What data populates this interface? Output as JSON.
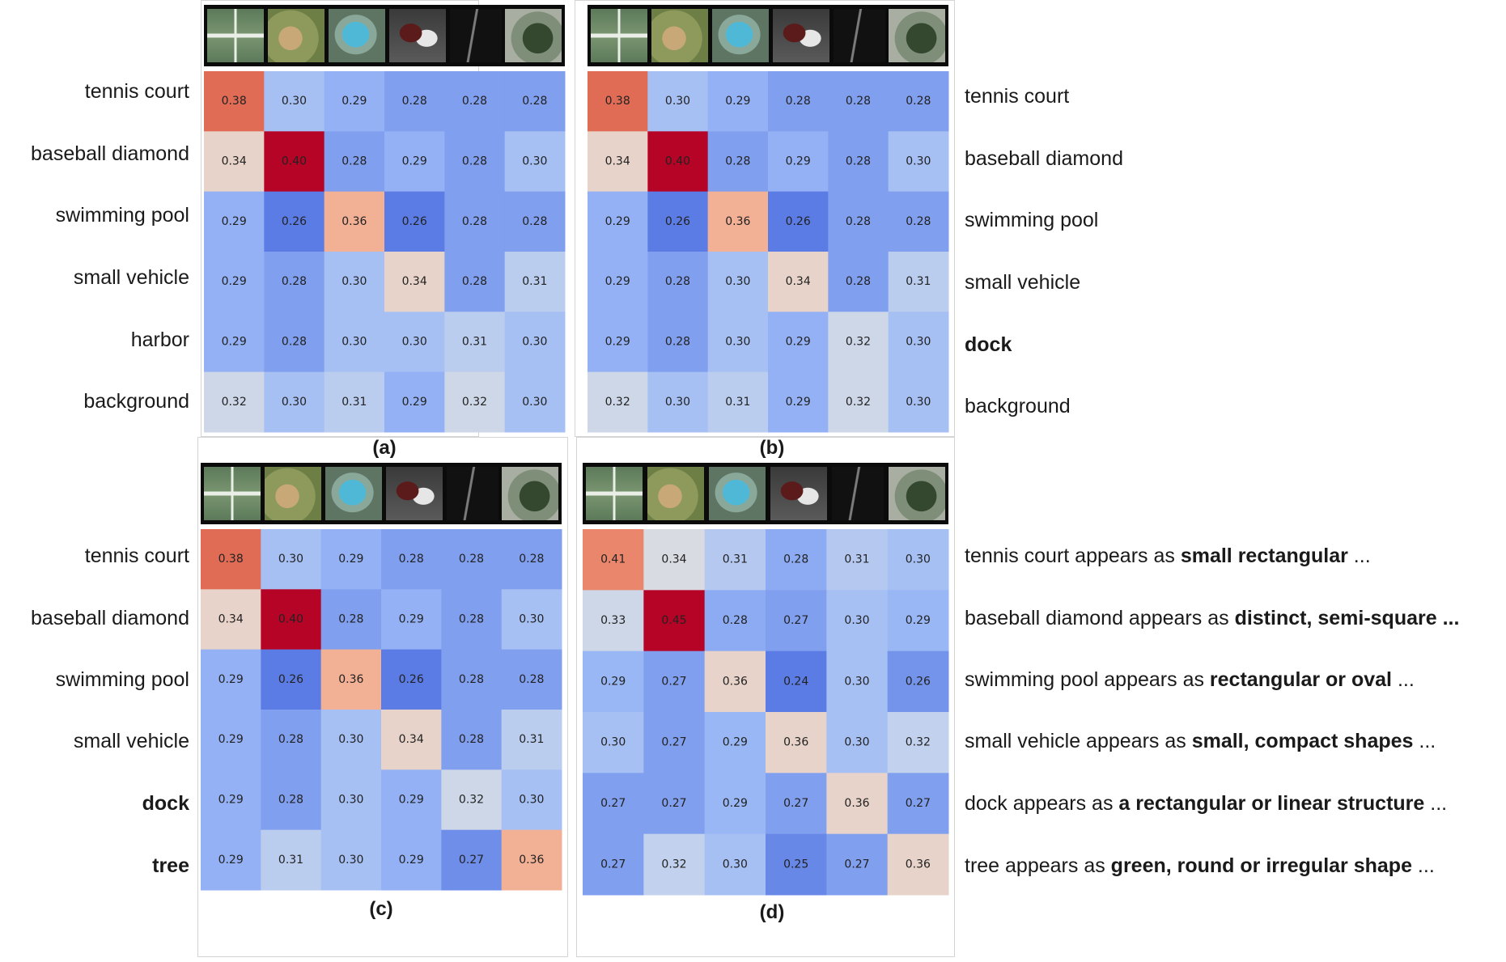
{
  "chart_data": [
    {
      "type": "heatmap",
      "caption": "(a)",
      "row_labels": [
        {
          "text": "tennis court",
          "bold": false
        },
        {
          "text": "baseball diamond",
          "bold": false
        },
        {
          "text": "swimming pool",
          "bold": false
        },
        {
          "text": "small vehicle",
          "bold": false
        },
        {
          "text": "harbor",
          "bold": false
        },
        {
          "text": "background",
          "bold": false
        }
      ],
      "image_columns": [
        "tennis-court",
        "baseball-diamond",
        "swimming-pool",
        "small-vehicle",
        "dock",
        "tree"
      ],
      "values": [
        [
          0.38,
          0.3,
          0.29,
          0.28,
          0.28,
          0.28
        ],
        [
          0.34,
          0.4,
          0.28,
          0.29,
          0.28,
          0.3
        ],
        [
          0.29,
          0.26,
          0.36,
          0.26,
          0.28,
          0.28
        ],
        [
          0.29,
          0.28,
          0.3,
          0.34,
          0.28,
          0.31
        ],
        [
          0.29,
          0.28,
          0.3,
          0.3,
          0.31,
          0.3
        ],
        [
          0.32,
          0.3,
          0.31,
          0.29,
          0.32,
          0.3
        ]
      ],
      "colormap": "coolwarm"
    },
    {
      "type": "heatmap",
      "caption": "(b)",
      "row_labels": [
        {
          "text": "tennis court",
          "bold": false
        },
        {
          "text": "baseball diamond",
          "bold": false
        },
        {
          "text": "swimming pool",
          "bold": false
        },
        {
          "text": "small vehicle",
          "bold": false
        },
        {
          "text": "dock",
          "bold": true
        },
        {
          "text": "background",
          "bold": false
        }
      ],
      "image_columns": [
        "tennis-court",
        "baseball-diamond",
        "swimming-pool",
        "small-vehicle",
        "dock",
        "tree"
      ],
      "values": [
        [
          0.38,
          0.3,
          0.29,
          0.28,
          0.28,
          0.28
        ],
        [
          0.34,
          0.4,
          0.28,
          0.29,
          0.28,
          0.3
        ],
        [
          0.29,
          0.26,
          0.36,
          0.26,
          0.28,
          0.28
        ],
        [
          0.29,
          0.28,
          0.3,
          0.34,
          0.28,
          0.31
        ],
        [
          0.29,
          0.28,
          0.3,
          0.29,
          0.32,
          0.3
        ],
        [
          0.32,
          0.3,
          0.31,
          0.29,
          0.32,
          0.3
        ]
      ],
      "colormap": "coolwarm"
    },
    {
      "type": "heatmap",
      "caption": "(c)",
      "row_labels": [
        {
          "text": "tennis court",
          "bold": false
        },
        {
          "text": "baseball diamond",
          "bold": false
        },
        {
          "text": "swimming pool",
          "bold": false
        },
        {
          "text": "small vehicle",
          "bold": false
        },
        {
          "text": "dock",
          "bold": true
        },
        {
          "text": "tree",
          "bold": true
        }
      ],
      "image_columns": [
        "tennis-court",
        "baseball-diamond",
        "swimming-pool",
        "small-vehicle",
        "dock",
        "tree"
      ],
      "values": [
        [
          0.38,
          0.3,
          0.29,
          0.28,
          0.28,
          0.28
        ],
        [
          0.34,
          0.4,
          0.28,
          0.29,
          0.28,
          0.3
        ],
        [
          0.29,
          0.26,
          0.36,
          0.26,
          0.28,
          0.28
        ],
        [
          0.29,
          0.28,
          0.3,
          0.34,
          0.28,
          0.31
        ],
        [
          0.29,
          0.28,
          0.3,
          0.29,
          0.32,
          0.3
        ],
        [
          0.29,
          0.31,
          0.3,
          0.29,
          0.27,
          0.36
        ]
      ],
      "colormap": "coolwarm"
    },
    {
      "type": "heatmap",
      "caption": "(d)",
      "row_labels": [
        {
          "text": "tennis court appears as ",
          "bold_text": "small rectangular",
          "suffix": " ..."
        },
        {
          "text": "baseball diamond appears as ",
          "bold_text": "distinct, semi-square ...",
          "suffix": ""
        },
        {
          "text": "swimming pool appears as ",
          "bold_text": "rectangular or oval",
          "suffix": " ..."
        },
        {
          "text": "small vehicle appears as ",
          "bold_text": "small, compact shapes",
          "suffix": " ..."
        },
        {
          "text": "dock appears as ",
          "bold_text": "a rectangular or linear structure",
          "suffix": " ..."
        },
        {
          "text": "tree appears as ",
          "bold_text": "green, round or irregular shape",
          "suffix": " ..."
        }
      ],
      "image_columns": [
        "tennis-court",
        "baseball-diamond",
        "swimming-pool",
        "small-vehicle",
        "dock",
        "tree"
      ],
      "values": [
        [
          0.41,
          0.34,
          0.31,
          0.28,
          0.31,
          0.3
        ],
        [
          0.33,
          0.45,
          0.28,
          0.27,
          0.3,
          0.29
        ],
        [
          0.29,
          0.27,
          0.36,
          0.24,
          0.3,
          0.26
        ],
        [
          0.3,
          0.27,
          0.29,
          0.36,
          0.3,
          0.32
        ],
        [
          0.27,
          0.27,
          0.29,
          0.27,
          0.36,
          0.27
        ],
        [
          0.27,
          0.32,
          0.3,
          0.25,
          0.27,
          0.36
        ]
      ],
      "colormap": "coolwarm"
    }
  ]
}
